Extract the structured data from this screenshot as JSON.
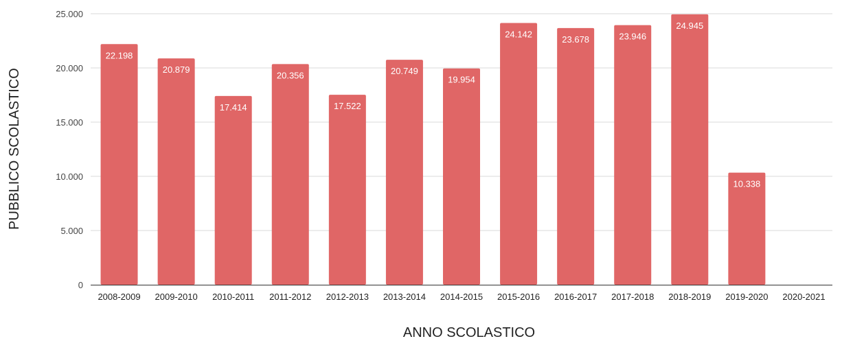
{
  "chart_data": {
    "type": "bar",
    "categories": [
      "2008-2009",
      "2009-2010",
      "2010-2011",
      "2011-2012",
      "2012-2013",
      "2013-2014",
      "2014-2015",
      "2015-2016",
      "2016-2017",
      "2017-2018",
      "2018-2019",
      "2019-2020",
      "2020-2021"
    ],
    "values": [
      22198,
      20879,
      17414,
      20356,
      17522,
      20749,
      19954,
      24142,
      23678,
      23946,
      24945,
      10338,
      0
    ],
    "value_labels": [
      "22.198",
      "20.879",
      "17.414",
      "20.356",
      "17.522",
      "20.749",
      "19.954",
      "24.142",
      "23.678",
      "23.946",
      "24.945",
      "10.338",
      ""
    ],
    "yticks": [
      0,
      5000,
      10000,
      15000,
      20000,
      25000
    ],
    "ytick_labels": [
      "0",
      "5.000",
      "10.000",
      "15.000",
      "20.000",
      "25.000"
    ],
    "xlabel": "ANNO SCOLASTICO",
    "ylabel": "PUBBLICO SCOLASTICO",
    "ylim": [
      0,
      25000
    ],
    "grid": true,
    "bar_color": "#e06666"
  }
}
